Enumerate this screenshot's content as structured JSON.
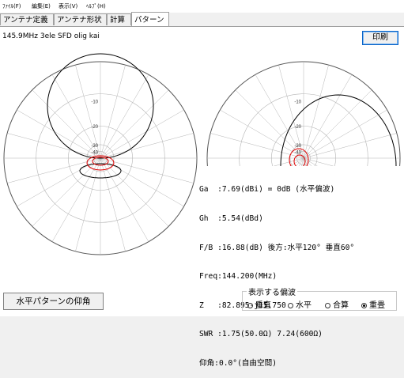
{
  "menu": [
    {
      "label": "ﾌｧｲﾙ(F)"
    },
    {
      "label": "編集(E)"
    },
    {
      "label": "表示(V)"
    },
    {
      "label": "ﾍﾙﾌﾟ(H)"
    }
  ],
  "tabs": [
    {
      "label": "アンテナ定義",
      "active": false
    },
    {
      "label": "アンテナ形状",
      "active": false
    },
    {
      "label": "計算",
      "active": false
    },
    {
      "label": "パターン",
      "active": true
    }
  ],
  "model_name": "145.9MHz 3ele SFD olig kai",
  "print_button": "印刷",
  "horizontal_plot": {
    "ring_labels": [
      "-10",
      "-20",
      "-30",
      "-40"
    ]
  },
  "vertical_plot": {
    "ring_labels": [
      "-10",
      "-20",
      "-30",
      "-40"
    ]
  },
  "results": [
    "Ga  :7.69(dBi) = 0dB (水平偏波)",
    "Gh  :5.54(dBd)",
    "F/B :16.88(dB) 後方:水平120° 垂直60°",
    "Freq:144.200(MHz)",
    "Z   :82.895-j15.750",
    "SWR :1.75(50.0Ω) 7.24(600Ω)",
    "仰角:0.0°(自由空間)"
  ],
  "elevation_button": "水平パターンの仰角",
  "polarization": {
    "title": "表示する偏波",
    "options": [
      {
        "label": "垂直",
        "selected": false
      },
      {
        "label": "水平",
        "selected": false
      },
      {
        "label": "合算",
        "selected": false
      },
      {
        "label": "重畳",
        "selected": true
      }
    ]
  },
  "colors": {
    "total_pattern": "#000000",
    "vertical_pattern": "#e00000",
    "grid": "#b4b4b4"
  }
}
